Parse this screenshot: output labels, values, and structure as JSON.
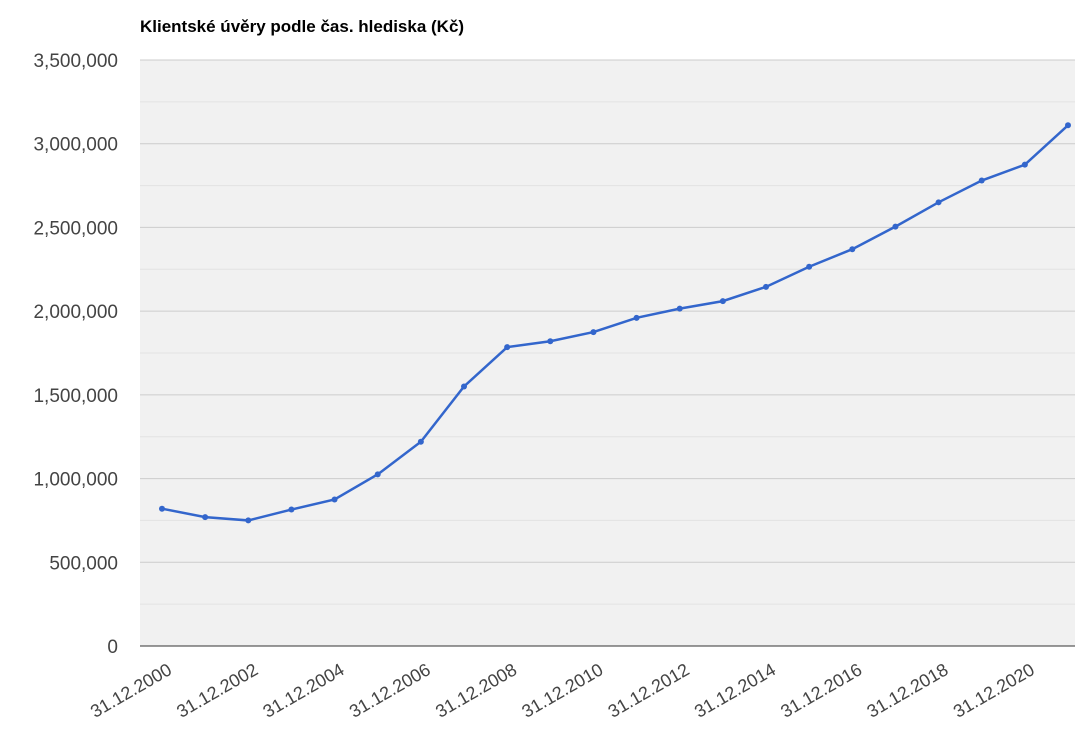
{
  "chart_data": {
    "type": "line",
    "title": "Klientské úvěry podle čas. hlediska (Kč)",
    "categories": [
      "31.12.2000",
      null,
      "31.12.2002",
      null,
      "31.12.2004",
      null,
      "31.12.2006",
      null,
      "31.12.2008",
      null,
      "31.12.2010",
      null,
      "31.12.2012",
      null,
      "31.12.2014",
      null,
      "31.12.2016",
      null,
      "31.12.2018",
      null,
      "31.12.2020",
      null
    ],
    "series": [
      {
        "name": "Klientské úvěry",
        "color": "#3366cc",
        "values": [
          820000,
          770000,
          750000,
          815000,
          875000,
          1025000,
          1220000,
          1550000,
          1785000,
          1820000,
          1875000,
          1960000,
          2015000,
          2060000,
          2145000,
          2265000,
          2370000,
          2505000,
          2650000,
          2780000,
          2875000,
          3110000
        ]
      }
    ],
    "ylim": [
      0,
      3500000
    ],
    "yticks": [
      0,
      {
        "value": 500000,
        "label": "500,000"
      },
      {
        "value": 1000000,
        "label": "1,000,000"
      },
      {
        "value": 1500000,
        "label": "1,500,000"
      },
      {
        "value": 2000000,
        "label": "2,000,000"
      },
      {
        "value": 2500000,
        "label": "2,500,000"
      },
      {
        "value": 3000000,
        "label": "3,000,000"
      },
      {
        "value": 3500000,
        "label": "3,500,000"
      }
    ],
    "yminorticks": [
      250000,
      750000,
      1250000,
      1750000,
      2250000,
      2750000,
      3250000
    ],
    "grid": true
  }
}
